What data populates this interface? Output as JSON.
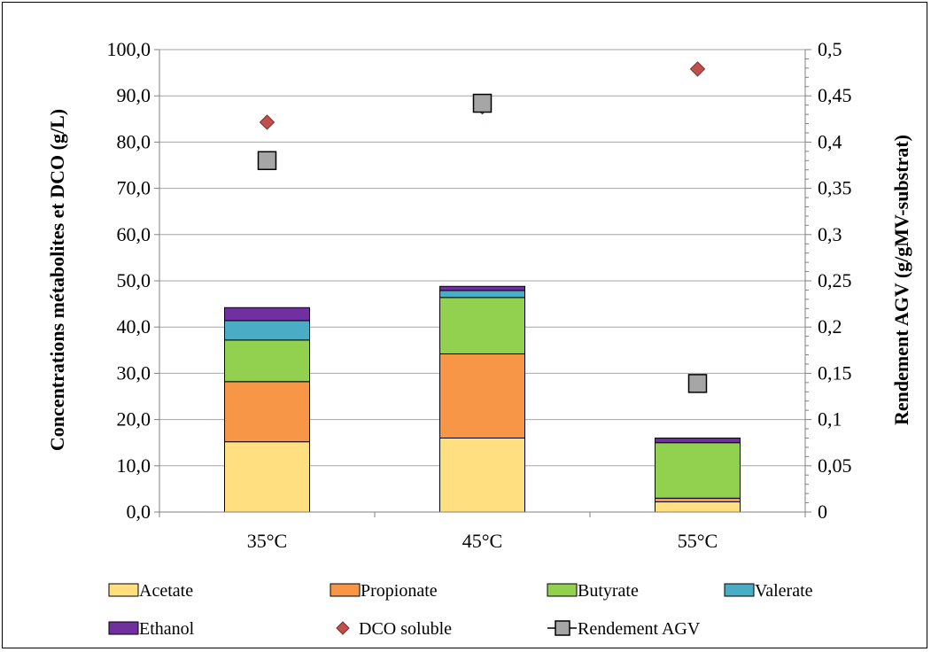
{
  "chart_data": {
    "type": "bar",
    "stacked": true,
    "categories": [
      "35°C",
      "45°C",
      "55°C"
    ],
    "y_left": {
      "label": "Concentrations métabolites et DCO (g/L)",
      "lim": [
        0,
        100
      ],
      "ticks": [
        "0,0",
        "10,0",
        "20,0",
        "30,0",
        "40,0",
        "50,0",
        "60,0",
        "70,0",
        "80,0",
        "90,0",
        "100,0"
      ]
    },
    "y_right": {
      "label": "Rendement AGV (g/gMV-substrat)",
      "lim": [
        0,
        0.5
      ],
      "ticks": [
        "0",
        "0,05",
        "0,1",
        "0,15",
        "0,2",
        "0,25",
        "0,3",
        "0,35",
        "0,4",
        "0,45",
        "0,5"
      ]
    },
    "gridlines": true,
    "legend_position": "bottom",
    "series": [
      {
        "name": "Acetate",
        "kind": "bar",
        "axis": "left",
        "color": "#FFDF80",
        "values": [
          15.2,
          16.0,
          2.2
        ]
      },
      {
        "name": "Propionate",
        "kind": "bar",
        "axis": "left",
        "color": "#F79646",
        "values": [
          13.0,
          18.2,
          0.8
        ]
      },
      {
        "name": "Butyrate",
        "kind": "bar",
        "axis": "left",
        "color": "#92D050",
        "values": [
          9.0,
          12.2,
          12.0
        ]
      },
      {
        "name": "Valerate",
        "kind": "bar",
        "axis": "left",
        "color": "#4BACC6",
        "values": [
          4.2,
          1.5,
          0.0
        ]
      },
      {
        "name": "Ethanol",
        "kind": "bar",
        "axis": "left",
        "color": "#7030A0",
        "values": [
          2.8,
          0.9,
          1.0
        ]
      },
      {
        "name": "DCO soluble",
        "kind": "diamond",
        "axis": "left",
        "color": "#C0504D",
        "values": [
          84.3,
          87.6,
          95.8
        ]
      },
      {
        "name": "Rendement AGV",
        "kind": "square",
        "axis": "right",
        "color": "#A6A6A6",
        "values": [
          0.38,
          0.442,
          0.139
        ]
      }
    ]
  }
}
